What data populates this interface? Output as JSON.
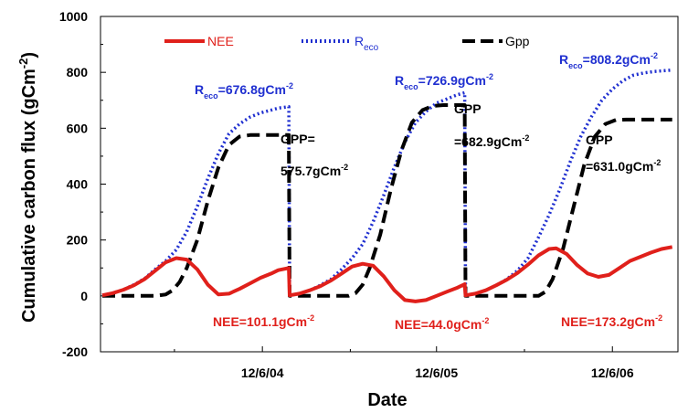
{
  "chart_data": {
    "type": "line",
    "xlabel": "Date",
    "ylabel": "Cumulative carbon flux (gCm",
    "ylabel_sup": "-2",
    "ylabel_close": ")",
    "ylim": [
      -200,
      1000
    ],
    "yticks": [
      "-200",
      "0",
      "200",
      "400",
      "600",
      "800",
      "1000"
    ],
    "xticks": [
      "12/6/04",
      "12/6/05",
      "12/6/06"
    ],
    "grid": false,
    "legend_position": "top",
    "colors": {
      "NEE": "#e0201b",
      "Reco": "#1f2fd0",
      "Gpp": "#000000"
    },
    "series": [
      {
        "name": "NEE",
        "legend_label": "NEE",
        "style": "solid",
        "points": [
          [
            0,
            2
          ],
          [
            6,
            10
          ],
          [
            12,
            22
          ],
          [
            18,
            38
          ],
          [
            24,
            60
          ],
          [
            30,
            90
          ],
          [
            36,
            120
          ],
          [
            42,
            135
          ],
          [
            48,
            130
          ],
          [
            54,
            95
          ],
          [
            60,
            40
          ],
          [
            66,
            5
          ],
          [
            72,
            8
          ],
          [
            78,
            25
          ],
          [
            84,
            45
          ],
          [
            90,
            65
          ],
          [
            96,
            80
          ],
          [
            100,
            92
          ],
          [
            106,
            100
          ],
          [
            106.5,
            2
          ],
          [
            112,
            8
          ],
          [
            118,
            20
          ],
          [
            124,
            35
          ],
          [
            130,
            55
          ],
          [
            136,
            80
          ],
          [
            142,
            105
          ],
          [
            148,
            115
          ],
          [
            154,
            108
          ],
          [
            160,
            70
          ],
          [
            166,
            20
          ],
          [
            172,
            -15
          ],
          [
            178,
            -20
          ],
          [
            184,
            -15
          ],
          [
            190,
            0
          ],
          [
            196,
            15
          ],
          [
            202,
            30
          ],
          [
            206,
            42
          ],
          [
            206.5,
            2
          ],
          [
            212,
            8
          ],
          [
            218,
            20
          ],
          [
            224,
            38
          ],
          [
            230,
            58
          ],
          [
            236,
            82
          ],
          [
            242,
            112
          ],
          [
            248,
            145
          ],
          [
            254,
            168
          ],
          [
            258,
            170
          ],
          [
            264,
            150
          ],
          [
            270,
            110
          ],
          [
            276,
            80
          ],
          [
            282,
            68
          ],
          [
            288,
            75
          ],
          [
            294,
            100
          ],
          [
            300,
            125
          ],
          [
            306,
            140
          ],
          [
            312,
            155
          ],
          [
            318,
            168
          ],
          [
            324,
            175
          ]
        ]
      },
      {
        "name": "Reco",
        "legend_label": "R",
        "legend_sub": "eco",
        "style": "dotted",
        "points": [
          [
            0,
            2
          ],
          [
            6,
            10
          ],
          [
            12,
            22
          ],
          [
            18,
            40
          ],
          [
            24,
            62
          ],
          [
            30,
            95
          ],
          [
            36,
            125
          ],
          [
            42,
            165
          ],
          [
            48,
            230
          ],
          [
            54,
            320
          ],
          [
            60,
            420
          ],
          [
            66,
            510
          ],
          [
            72,
            580
          ],
          [
            78,
            615
          ],
          [
            84,
            640
          ],
          [
            90,
            655
          ],
          [
            96,
            665
          ],
          [
            100,
            672
          ],
          [
            106,
            676.8
          ],
          [
            106.5,
            2
          ],
          [
            112,
            8
          ],
          [
            118,
            20
          ],
          [
            124,
            38
          ],
          [
            130,
            60
          ],
          [
            136,
            95
          ],
          [
            142,
            135
          ],
          [
            148,
            185
          ],
          [
            154,
            265
          ],
          [
            160,
            360
          ],
          [
            166,
            460
          ],
          [
            172,
            550
          ],
          [
            178,
            620
          ],
          [
            184,
            660
          ],
          [
            190,
            690
          ],
          [
            196,
            705
          ],
          [
            202,
            720
          ],
          [
            206,
            726.9
          ],
          [
            206.5,
            2
          ],
          [
            212,
            8
          ],
          [
            218,
            20
          ],
          [
            224,
            38
          ],
          [
            230,
            60
          ],
          [
            236,
            90
          ],
          [
            242,
            135
          ],
          [
            248,
            210
          ],
          [
            254,
            290
          ],
          [
            260,
            380
          ],
          [
            266,
            480
          ],
          [
            272,
            570
          ],
          [
            278,
            640
          ],
          [
            284,
            700
          ],
          [
            290,
            740
          ],
          [
            296,
            770
          ],
          [
            302,
            790
          ],
          [
            308,
            798
          ],
          [
            314,
            803
          ],
          [
            320,
            806
          ],
          [
            324,
            808.2
          ]
        ]
      },
      {
        "name": "Gpp",
        "legend_label": "Gpp",
        "style": "dashed",
        "points": [
          [
            0,
            0
          ],
          [
            30,
            0
          ],
          [
            36,
            5
          ],
          [
            40,
            20
          ],
          [
            44,
            50
          ],
          [
            48,
            100
          ],
          [
            54,
            200
          ],
          [
            60,
            340
          ],
          [
            66,
            460
          ],
          [
            72,
            540
          ],
          [
            78,
            570
          ],
          [
            84,
            575.7
          ],
          [
            106,
            575.7
          ],
          [
            106.5,
            0
          ],
          [
            140,
            0
          ],
          [
            144,
            10
          ],
          [
            148,
            40
          ],
          [
            152,
            100
          ],
          [
            158,
            220
          ],
          [
            164,
            380
          ],
          [
            170,
            520
          ],
          [
            176,
            620
          ],
          [
            182,
            665
          ],
          [
            188,
            680
          ],
          [
            194,
            682.9
          ],
          [
            206,
            682.9
          ],
          [
            206.5,
            0
          ],
          [
            248,
            0
          ],
          [
            252,
            15
          ],
          [
            256,
            60
          ],
          [
            262,
            170
          ],
          [
            268,
            320
          ],
          [
            274,
            470
          ],
          [
            280,
            570
          ],
          [
            286,
            615
          ],
          [
            292,
            630
          ],
          [
            298,
            631
          ],
          [
            324,
            631.0
          ]
        ]
      }
    ],
    "annotations": {
      "reco1": {
        "main": "R",
        "sub": "eco",
        "text": "=676.8gCm",
        "sup": "-2"
      },
      "reco2": {
        "main": "R",
        "sub": "eco",
        "text": "=726.9gCm",
        "sup": "-2"
      },
      "reco3": {
        "main": "R",
        "sub": "eco",
        "text": "=808.2gCm",
        "sup": "-2"
      },
      "gpp1_line1": "GPP=",
      "gpp1_line2": {
        "text": "575.7gCm",
        "sup": "-2"
      },
      "gpp2_line1": "GPP",
      "gpp2_line2": {
        "text": "=682.9gCm",
        "sup": "-2"
      },
      "gpp3_line1": "GPP",
      "gpp3_line2": {
        "text": "=631.0gCm",
        "sup": "-2"
      },
      "nee1": {
        "text": "NEE=101.1gCm",
        "sup": "-2"
      },
      "nee2": {
        "text": "NEE=44.0gCm",
        "sup": "-2"
      },
      "nee3": {
        "text": "NEE=173.2gCm",
        "sup": "-2"
      }
    }
  }
}
